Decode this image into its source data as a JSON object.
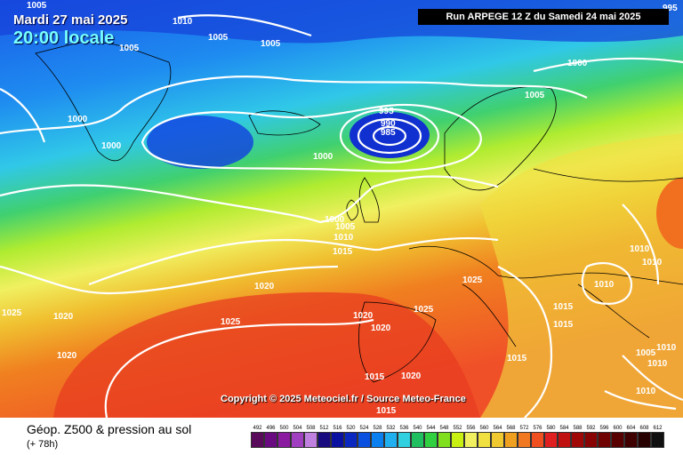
{
  "header": {
    "date": "Mardi 27 mai 2025",
    "time": "20:00 locale",
    "run": "Run ARPEGE 12 Z du Samedi 24 mai 2025"
  },
  "copyright": "Copyright © 2025 Meteociel.fr / Source Meteo-France",
  "footer": {
    "title": "Géop. Z500 & pression au sol",
    "subtitle": "(+ 78h)"
  },
  "legend": {
    "labels": [
      "492",
      "496",
      "500",
      "504",
      "508",
      "512",
      "516",
      "520",
      "524",
      "528",
      "532",
      "536",
      "540",
      "544",
      "548",
      "552",
      "556",
      "560",
      "564",
      "568",
      "572",
      "576",
      "580",
      "584",
      "588",
      "592",
      "596",
      "600",
      "604",
      "608",
      "612"
    ],
    "colors": [
      "#5a0a5a",
      "#6a0a80",
      "#8a1aa0",
      "#a040c0",
      "#c080e0",
      "#1a0a80",
      "#0a10a0",
      "#0a28c0",
      "#0a50e0",
      "#0a80f0",
      "#20b0f0",
      "#30d0e0",
      "#20c060",
      "#30d040",
      "#80e020",
      "#c8f010",
      "#f0f060",
      "#f0e040",
      "#f0c830",
      "#f0a020",
      "#f07820",
      "#f05020",
      "#e02020",
      "#c01010",
      "#a00808",
      "#880404",
      "#700202",
      "#580000",
      "#400000",
      "#280000",
      "#101010"
    ]
  },
  "map_labels": [
    {
      "text": "1005"
    },
    {
      "text": "1010"
    },
    {
      "text": "1005"
    },
    {
      "text": "1005"
    },
    {
      "text": "1005"
    },
    {
      "text": "995"
    },
    {
      "text": "1000"
    },
    {
      "text": "1005"
    },
    {
      "text": "1000"
    },
    {
      "text": "1000"
    },
    {
      "text": "995"
    },
    {
      "text": "990"
    },
    {
      "text": "985"
    },
    {
      "text": "1000"
    },
    {
      "text": "1000"
    },
    {
      "text": "1005"
    },
    {
      "text": "1010"
    },
    {
      "text": "1015"
    },
    {
      "text": "1020"
    },
    {
      "text": "1025"
    },
    {
      "text": "1020"
    },
    {
      "text": "1025"
    },
    {
      "text": "1020"
    },
    {
      "text": "1020"
    },
    {
      "text": "1020"
    },
    {
      "text": "1025"
    },
    {
      "text": "1015"
    },
    {
      "text": "1020"
    },
    {
      "text": "1015"
    },
    {
      "text": "1025"
    },
    {
      "text": "1015"
    },
    {
      "text": "1010"
    },
    {
      "text": "1010"
    },
    {
      "text": "1010"
    },
    {
      "text": "1015"
    },
    {
      "text": "1015"
    },
    {
      "text": "1010"
    },
    {
      "text": "1005"
    },
    {
      "text": "1010"
    },
    {
      "text": "1010"
    }
  ]
}
